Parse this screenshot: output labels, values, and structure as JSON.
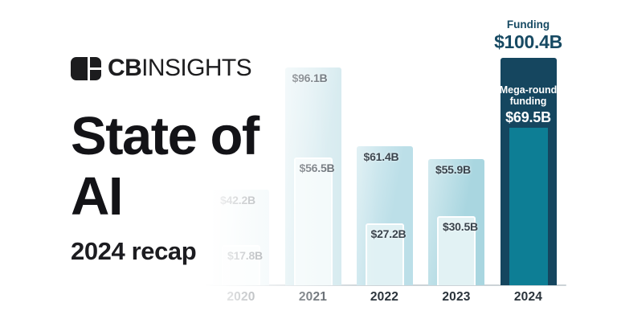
{
  "brand": {
    "logo_cb": "CB",
    "logo_insights": "INSIGHTS"
  },
  "title": {
    "line1": "State of",
    "line2": "AI"
  },
  "subtitle": "2024 recap",
  "chart_data": {
    "type": "bar",
    "title": "",
    "categories": [
      "2020",
      "2021",
      "2022",
      "2023",
      "2024"
    ],
    "series": [
      {
        "name": "Funding",
        "values": [
          42.2,
          96.1,
          61.4,
          55.9,
          100.4
        ]
      },
      {
        "name": "Mega-round funding",
        "values": [
          17.8,
          56.5,
          27.2,
          30.5,
          69.5
        ]
      }
    ],
    "unit": "$B",
    "ylim": [
      0,
      110
    ],
    "grid": false,
    "legend_position": "labels-on-2024-bar",
    "bars": [
      {
        "year": "2020",
        "funding_label": "$42.2B",
        "mega_label": "$17.8B",
        "visible_funding_label": "2.2B",
        "visible_mega_label": "7.8B",
        "outer_color": "#e7f3f6",
        "inner_color": "#f5fbfc"
      },
      {
        "year": "2021",
        "funding_label": "$96.1B",
        "mega_label": "$56.5B",
        "visible_funding_label": "$96.1B",
        "visible_mega_label": "$56.5B",
        "outer_color": "#cde6ec",
        "inner_color": "#eff8f9"
      },
      {
        "year": "2022",
        "funding_label": "$61.4B",
        "mega_label": "$27.2B",
        "visible_funding_label": "$61.4B",
        "visible_mega_label": "$27.2B",
        "outer_color": "#bcdfe8",
        "inner_color": "#e0f1f4"
      },
      {
        "year": "2023",
        "funding_label": "$55.9B",
        "mega_label": "$30.5B",
        "visible_funding_label": "$55.9B",
        "visible_mega_label": "$30.5B",
        "outer_color": "#a9d6e0",
        "inner_color": "#e2f2f4"
      },
      {
        "year": "2024",
        "funding_label": "$100.4B",
        "mega_label": "$69.5B",
        "visible_funding_label": "$100.4B",
        "visible_mega_label": "$69.5B",
        "outer_color": "#15465f",
        "inner_color": "#0d7e95"
      }
    ],
    "annotations": {
      "funding_label": "Funding",
      "funding_value": "$100.4B",
      "mega_line1": "Mega-round",
      "mega_line2": "funding",
      "mega_value": "$69.5B"
    }
  },
  "colors": {
    "navy": "#15465f",
    "teal": "#0d7e95",
    "axis_line": "#ccd3d7",
    "value_label": "#39434c",
    "year_label": "#2a333b",
    "callout_navy": "#174a63"
  }
}
